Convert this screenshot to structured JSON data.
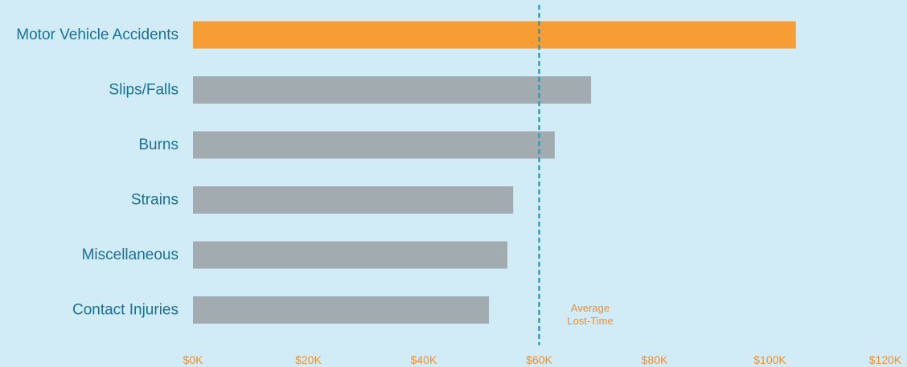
{
  "chart_data": {
    "type": "bar",
    "orientation": "horizontal",
    "categories": [
      "Motor Vehicle Accidents",
      "Slips/Falls",
      "Burns",
      "Strains",
      "Miscellaneous",
      "Contact Injuries"
    ],
    "values": [
      104500,
      69000,
      62700,
      55500,
      54500,
      51300
    ],
    "highlighted": "Motor Vehicle Accidents",
    "xlim": [
      0,
      120000
    ],
    "x_ticks": [
      {
        "value": 0,
        "label": "$0K"
      },
      {
        "value": 20000,
        "label": "$20K"
      },
      {
        "value": 40000,
        "label": "$40K"
      },
      {
        "value": 60000,
        "label": "$60K"
      },
      {
        "value": 80000,
        "label": "$80K"
      },
      {
        "value": 100000,
        "label": "$100K"
      },
      {
        "value": 120000,
        "label": "$120K"
      }
    ],
    "reference_line": {
      "value": 60000,
      "label_lines": [
        "Average",
        "Lost-Time"
      ]
    },
    "grid": false,
    "legend": "none",
    "colors": {
      "background": "#d1ecf7",
      "highlight_bar": "#f79d36",
      "bar": "#a2abaf",
      "category_label": "#1a7197",
      "tick_label": "#f28e2b",
      "reference_line": "#1aa3c8",
      "reference_label": "#f28e2b"
    }
  }
}
